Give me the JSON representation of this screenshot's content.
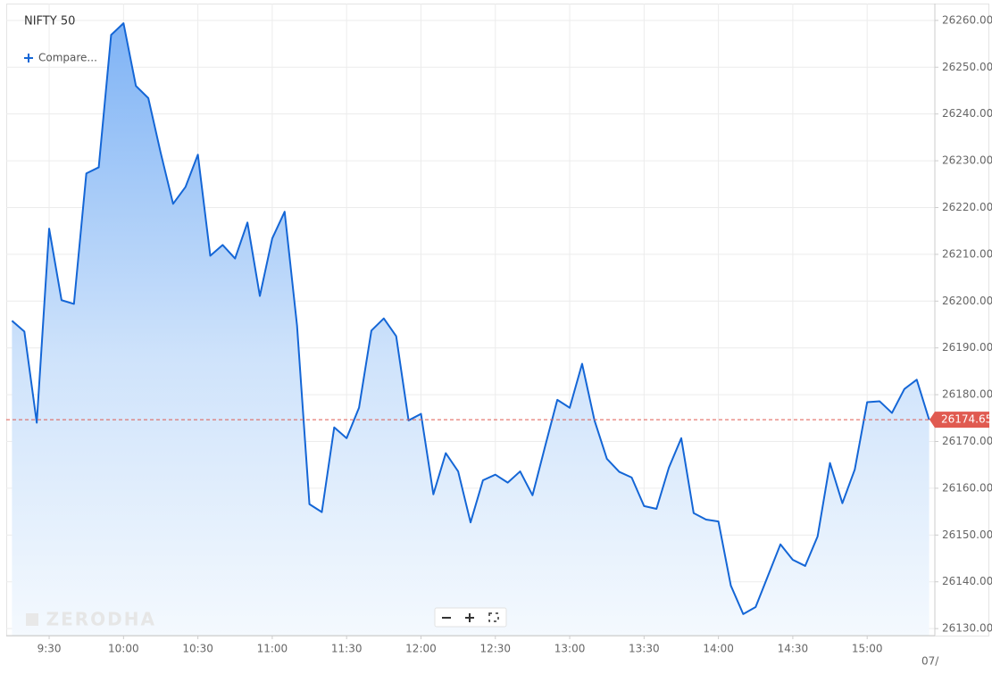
{
  "chart_data": {
    "type": "area",
    "title": "NIFTY 50",
    "compare_label": "Compare...",
    "watermark": "ZERODHA",
    "date_label": "07/",
    "x": [
      "9:15",
      "9:20",
      "9:25",
      "9:30",
      "9:35",
      "9:40",
      "9:45",
      "9:50",
      "9:55",
      "10:00",
      "10:05",
      "10:10",
      "10:15",
      "10:20",
      "10:25",
      "10:30",
      "10:35",
      "10:40",
      "10:45",
      "10:50",
      "10:55",
      "11:00",
      "11:05",
      "11:10",
      "11:15",
      "11:20",
      "11:25",
      "11:30",
      "11:35",
      "11:40",
      "11:45",
      "11:50",
      "11:55",
      "12:00",
      "12:05",
      "12:10",
      "12:15",
      "12:20",
      "12:25",
      "12:30",
      "12:35",
      "12:40",
      "12:45",
      "12:50",
      "12:55",
      "13:00",
      "13:05",
      "13:10",
      "13:15",
      "13:20",
      "13:25",
      "13:30",
      "13:35",
      "13:40",
      "13:45",
      "13:50",
      "13:55",
      "14:00",
      "14:05",
      "14:10",
      "14:15",
      "14:20",
      "14:25",
      "14:30",
      "14:35",
      "14:40",
      "14:45",
      "14:50",
      "14:55",
      "15:00",
      "15:05",
      "15:10",
      "15:15",
      "15:20",
      "15:25"
    ],
    "series": [
      {
        "name": "NIFTY 50",
        "color": "#1466d6",
        "values": [
          26195.8,
          26193.5,
          26174.0,
          26215.5,
          26200.2,
          26199.4,
          26227.3,
          26228.6,
          26256.9,
          26259.4,
          26246.0,
          26243.4,
          26231.7,
          26220.8,
          26224.4,
          26231.3,
          26209.7,
          26212.0,
          26209.1,
          26216.8,
          26201.1,
          26213.4,
          26219.1,
          26194.8,
          26156.6,
          26154.9,
          26173.0,
          26170.7,
          26177.2,
          26193.7,
          26196.3,
          26192.5,
          26174.5,
          26175.9,
          26158.7,
          26167.5,
          26163.6,
          26152.7,
          26161.7,
          26162.9,
          26161.2,
          26163.6,
          26158.5,
          26168.8,
          26178.9,
          26177.2,
          26186.6,
          26174.5,
          26166.3,
          26163.5,
          26162.3,
          26156.2,
          26155.6,
          26164.4,
          26170.7,
          26154.7,
          26153.3,
          26152.9,
          26139.2,
          26133.1,
          26134.6,
          26141.3,
          26148.0,
          26144.7,
          26143.4,
          26149.7,
          26165.4,
          26156.8,
          26164.0,
          26178.4,
          26178.6,
          26176.1,
          26181.2,
          26183.2,
          26174.65
        ]
      }
    ],
    "xticks": [
      "9:30",
      "10:00",
      "10:30",
      "11:00",
      "11:30",
      "12:00",
      "12:30",
      "13:00",
      "13:30",
      "14:00",
      "14:30",
      "15:00"
    ],
    "ylim": [
      26128.5,
      26263.6
    ],
    "yticks": [
      {
        "value": 26130,
        "label": "26130.00"
      },
      {
        "value": 26140,
        "label": "26140.00"
      },
      {
        "value": 26150,
        "label": "26150.00"
      },
      {
        "value": 26160,
        "label": "26160.00"
      },
      {
        "value": 26170,
        "label": "26170.00"
      },
      {
        "value": 26180,
        "label": "26180.00"
      },
      {
        "value": 26190,
        "label": "26190.00"
      },
      {
        "value": 26200,
        "label": "26200.00"
      },
      {
        "value": 26210,
        "label": "26210.00"
      },
      {
        "value": 26220,
        "label": "26220.00"
      },
      {
        "value": 26230,
        "label": "26230.00"
      },
      {
        "value": 26240,
        "label": "26240.00"
      },
      {
        "value": 26250,
        "label": "26250.00"
      },
      {
        "value": 26260,
        "label": "26260.00"
      }
    ],
    "last_price_color": "#e05a50",
    "grid": true
  }
}
